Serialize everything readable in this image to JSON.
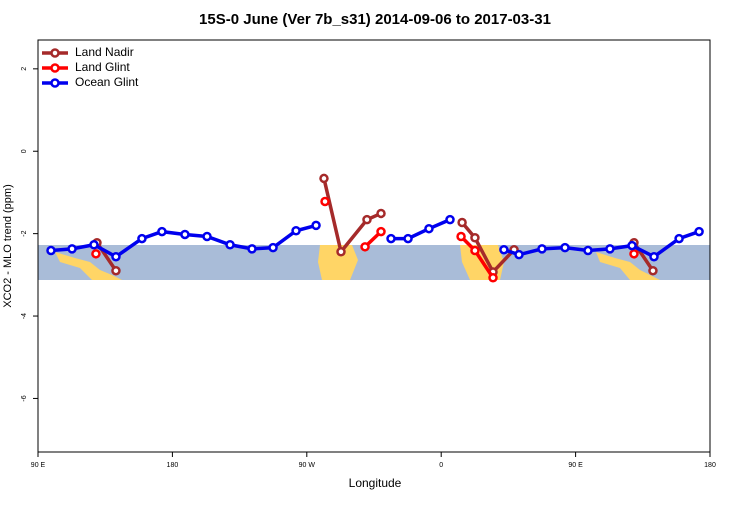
{
  "chart_data": {
    "type": "line",
    "title": "15S-0 June (Ver 7b_s31)   2014-09-06 to 2017-03-31",
    "x_label": "Longitude",
    "y_label": "XCO2 - MLO trend (ppm)",
    "xlim": [
      90,
      540
    ],
    "xticks": [
      {
        "value": 90,
        "label": "90 E"
      },
      {
        "value": 180,
        "label": "180"
      },
      {
        "value": 270,
        "label": "90 W"
      },
      {
        "value": 360,
        "label": "0"
      },
      {
        "value": 450,
        "label": "90 E"
      },
      {
        "value": 540,
        "label": "180"
      }
    ],
    "ylim": [
      -7.3,
      2.7
    ],
    "yticks": [
      2,
      0,
      -2,
      -4,
      -6
    ],
    "legend": "top-left",
    "series": [
      {
        "name": "Land Nadir",
        "color": "#a52a2a",
        "x": [
          129.5,
          142.2,
          212,
          281.5,
          292.9,
          310.3,
          319.7,
          347,
          374,
          382.6,
          394.7,
          408.8,
          449,
          489.1,
          501.8
        ],
        "values": [
          -2.22,
          -2.9,
          null,
          -0.66,
          -2.44,
          -1.66,
          -1.51,
          null,
          -1.73,
          -2.1,
          -2.93,
          -2.39,
          null,
          -2.22,
          -2.9
        ]
      },
      {
        "name": "Land Glint",
        "color": "#ff0000",
        "x": [
          128.8,
          205,
          282.2,
          296,
          309,
          319.7,
          346,
          373.3,
          382.6,
          394.7,
          442,
          489.1
        ],
        "values": [
          -2.49,
          null,
          -1.22,
          null,
          -2.32,
          -1.95,
          null,
          -2.07,
          -2.41,
          -3.07,
          null,
          -2.49
        ]
      },
      {
        "name": "Ocean Glint",
        "color": "#0000ee",
        "x": [
          98.7,
          112.8,
          127.5,
          142.2,
          159.6,
          173,
          188.4,
          203.2,
          218.6,
          233.3,
          247.4,
          262.8,
          276.2,
          301,
          326.4,
          337.8,
          351.8,
          365.9,
          384,
          402,
          412.1,
          427.5,
          442.9,
          458.3,
          473,
          487.8,
          502.5,
          519.3,
          532.7
        ],
        "values": [
          -2.41,
          -2.37,
          -2.27,
          -2.56,
          -2.12,
          -1.95,
          -2.02,
          -2.07,
          -2.27,
          -2.37,
          -2.34,
          -1.93,
          -1.8,
          null,
          -2.12,
          -2.12,
          -1.88,
          -1.66,
          null,
          -2.39,
          -2.51,
          -2.37,
          -2.34,
          -2.41,
          -2.37,
          -2.29,
          -2.56,
          -2.12,
          -1.95
        ]
      }
    ]
  }
}
